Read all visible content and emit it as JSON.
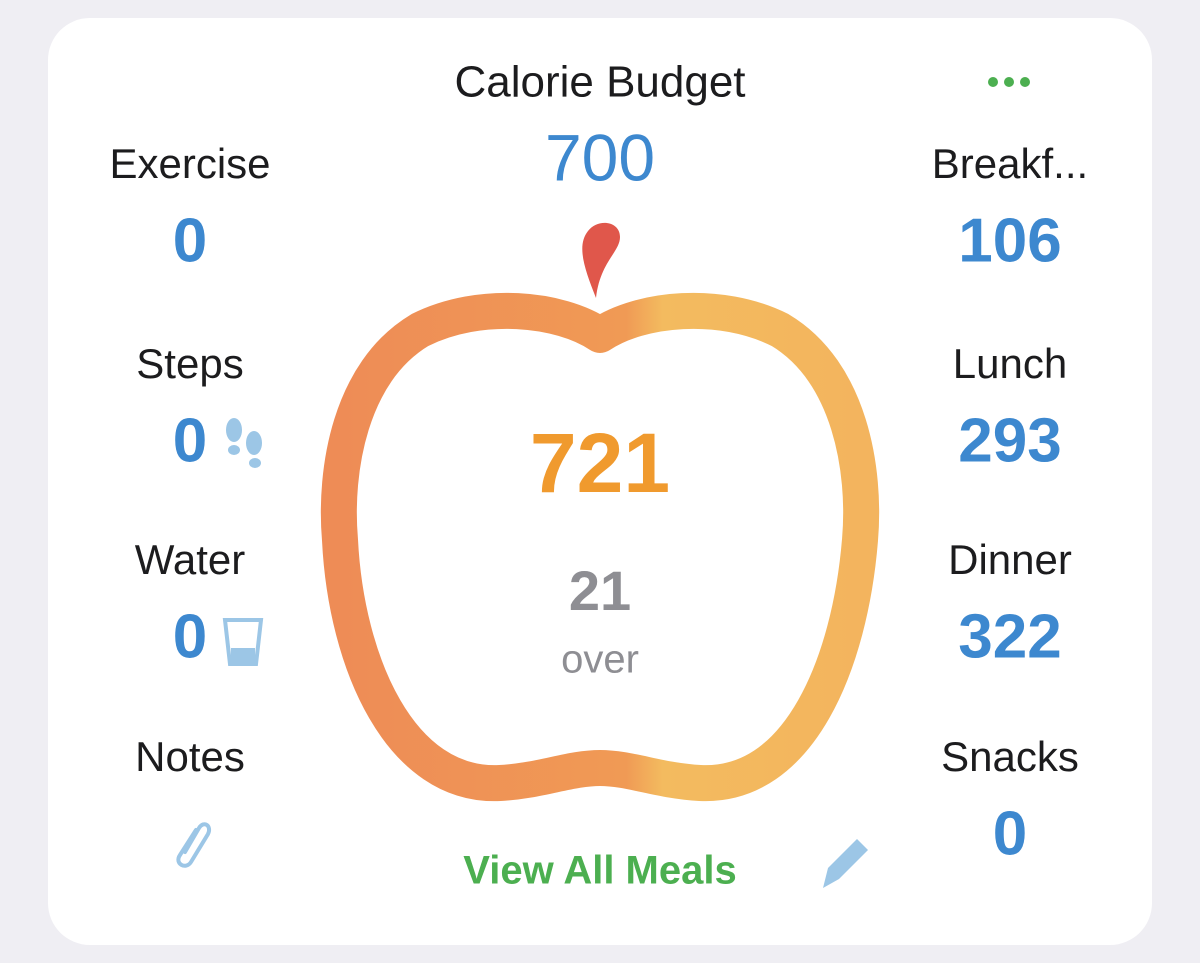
{
  "header": {
    "title": "Calorie Budget",
    "budget": 700
  },
  "left_items": [
    {
      "label": "Exercise",
      "value": 0
    },
    {
      "label": "Steps",
      "value": 0
    },
    {
      "label": "Water",
      "value": 0
    },
    {
      "label": "Notes"
    }
  ],
  "right_items": [
    {
      "label": "Breakf...",
      "value": 106
    },
    {
      "label": "Lunch",
      "value": 293
    },
    {
      "label": "Dinner",
      "value": 322
    },
    {
      "label": "Snacks",
      "value": 0
    }
  ],
  "center": {
    "consumed": 721,
    "difference": 21,
    "status": "over"
  },
  "footer": {
    "link": "View All Meals"
  }
}
